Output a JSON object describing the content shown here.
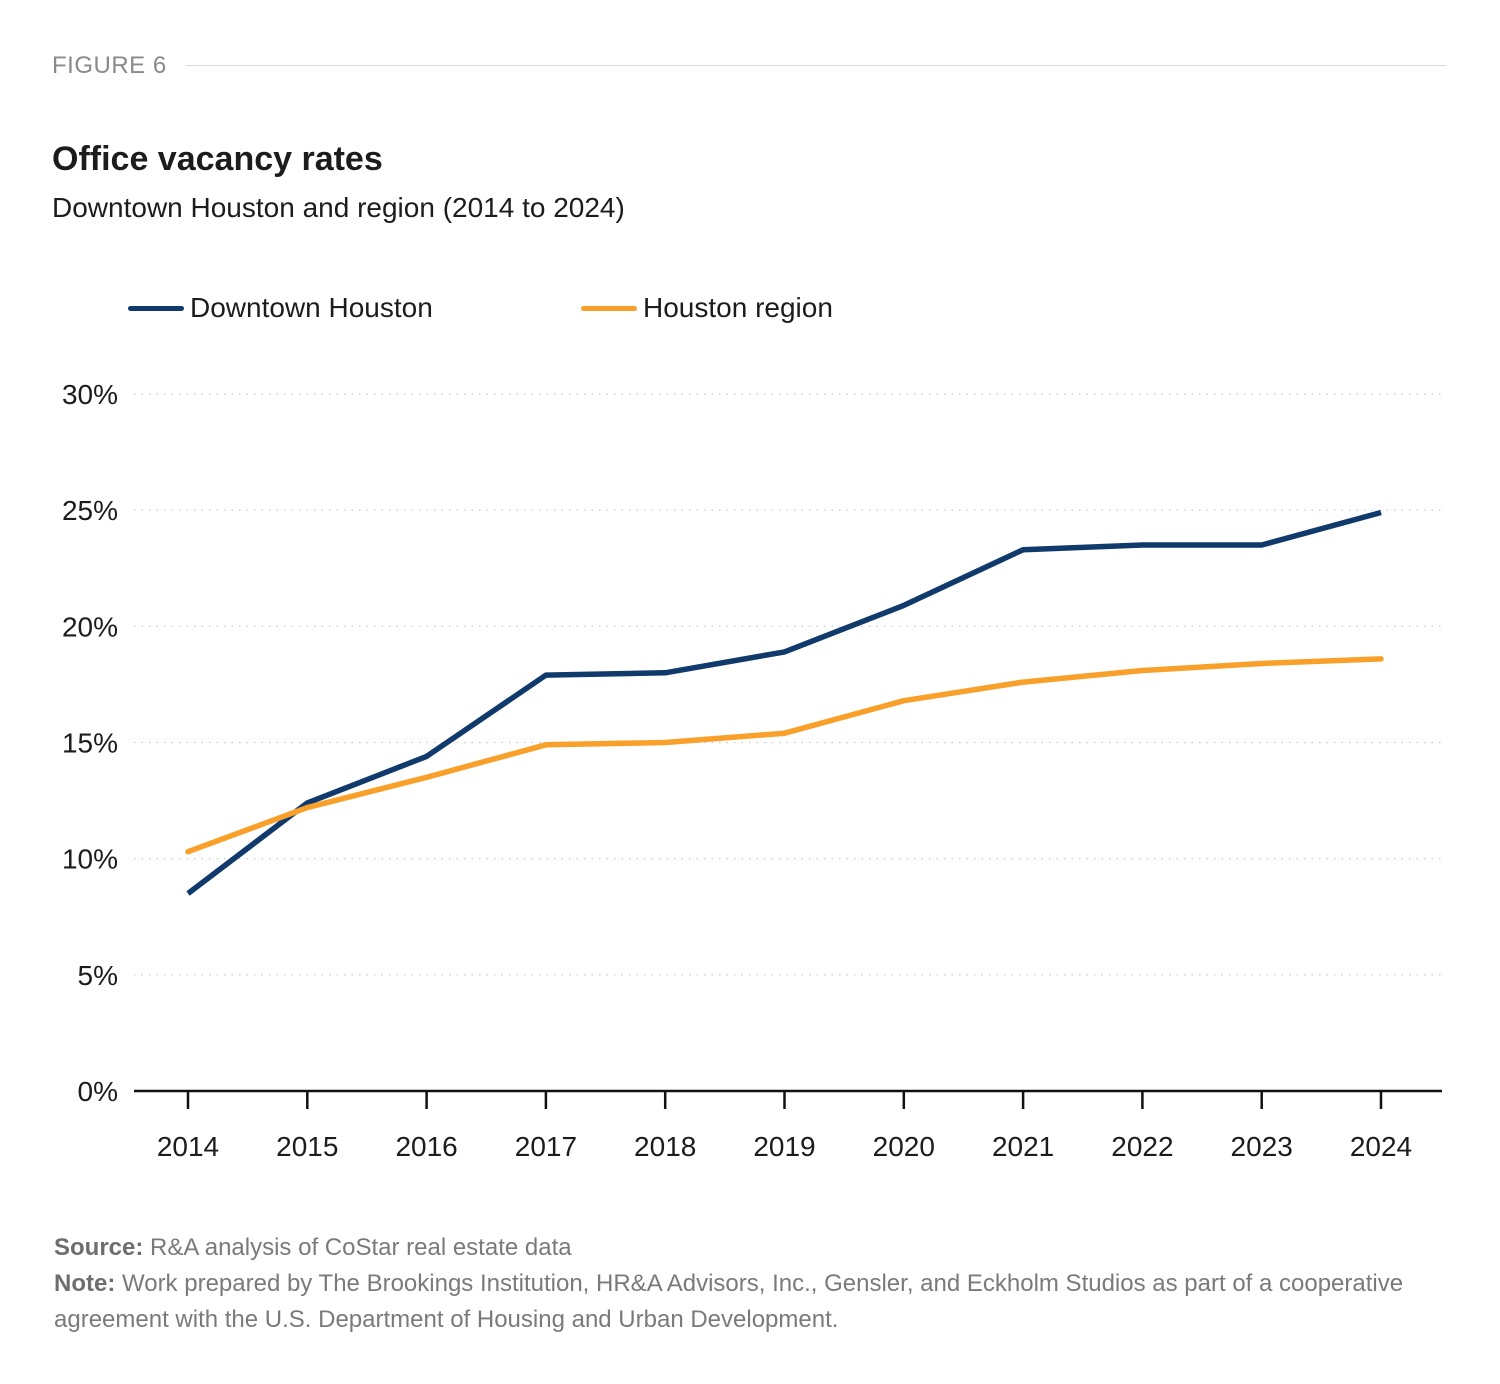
{
  "figure_label": "FIGURE 6",
  "title": "Office vacancy rates",
  "subtitle": "Downtown Houston and region (2014 to 2024)",
  "footer": {
    "source_label": "Source:",
    "source_text": " R&A analysis of CoStar real estate data",
    "note_label": "Note:",
    "note_text": " Work prepared by The Brookings Institution, HR&A Advisors, Inc., Gensler, and Eckholm Studios as part of a cooperative agreement with the U.S. Department of Housing and Urban Development."
  },
  "chart_data": {
    "type": "line",
    "title": "Office vacancy rates",
    "subtitle": "Downtown Houston and region (2014 to 2024)",
    "xlabel": "",
    "ylabel": "",
    "categories": [
      "2014",
      "2015",
      "2016",
      "2017",
      "2018",
      "2019",
      "2020",
      "2021",
      "2022",
      "2023",
      "2024"
    ],
    "ylim": [
      0,
      30
    ],
    "yticks": [
      0,
      5,
      10,
      15,
      20,
      25,
      30
    ],
    "ytick_format": "percent",
    "grid": "horizontal-dotted",
    "legend_position": "top-left",
    "series": [
      {
        "name": "Downtown Houston",
        "color": "#0f3a6b",
        "values": [
          8.5,
          12.4,
          14.4,
          17.9,
          18.0,
          18.9,
          20.9,
          23.3,
          23.5,
          23.5,
          24.9
        ]
      },
      {
        "name": "Houston region",
        "color": "#f9a02a",
        "values": [
          10.3,
          12.2,
          13.5,
          14.9,
          15.0,
          15.4,
          16.8,
          17.6,
          18.1,
          18.4,
          18.6
        ]
      }
    ]
  }
}
